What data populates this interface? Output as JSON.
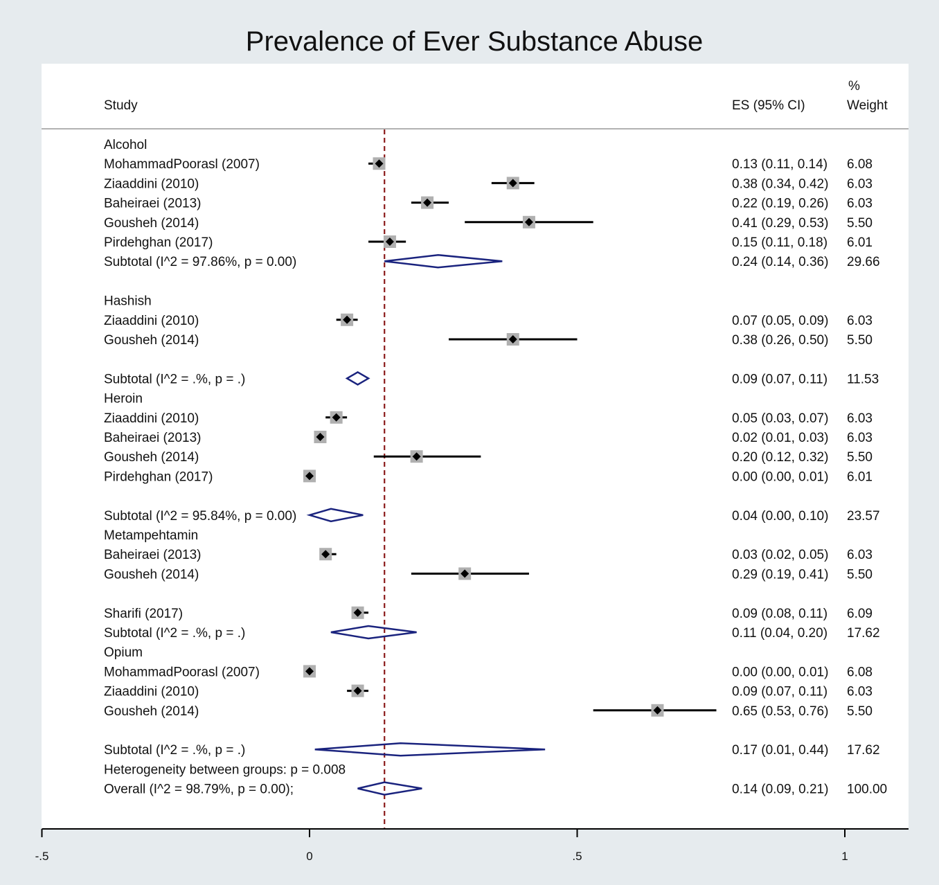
{
  "chart_data": {
    "type": "forest",
    "title": "Prevalence of Ever Substance Abuse",
    "headers": {
      "study": "Study",
      "es": "ES (95% CI)",
      "weight_pct": "%",
      "weight": "Weight"
    },
    "null_line": 0.14,
    "xlim": [
      -0.5,
      1.15
    ],
    "xticks": [
      {
        "value": -0.5,
        "label": "-.5"
      },
      {
        "value": 0,
        "label": "0"
      },
      {
        "value": 0.5,
        "label": ".5"
      },
      {
        "value": 1,
        "label": "1"
      }
    ],
    "rows": [
      {
        "kind": "group",
        "label": "Alcohol"
      },
      {
        "kind": "study",
        "label": "MohammadPoorasl (2007)",
        "es": 0.13,
        "lo": 0.11,
        "hi": 0.14,
        "ci_text": "0.13 (0.11, 0.14)",
        "weight": "6.08"
      },
      {
        "kind": "study",
        "label": "Ziaaddini (2010)",
        "es": 0.38,
        "lo": 0.34,
        "hi": 0.42,
        "ci_text": "0.38 (0.34, 0.42)",
        "weight": "6.03"
      },
      {
        "kind": "study",
        "label": "Baheiraei  (2013)",
        "es": 0.22,
        "lo": 0.19,
        "hi": 0.26,
        "ci_text": "0.22 (0.19, 0.26)",
        "weight": "6.03"
      },
      {
        "kind": "study",
        "label": "Gousheh (2014)",
        "es": 0.41,
        "lo": 0.29,
        "hi": 0.53,
        "ci_text": "0.41 (0.29, 0.53)",
        "weight": "5.50"
      },
      {
        "kind": "study",
        "label": "Pirdehghan (2017)",
        "es": 0.15,
        "lo": 0.11,
        "hi": 0.18,
        "ci_text": "0.15 (0.11, 0.18)",
        "weight": "6.01"
      },
      {
        "kind": "subtotal",
        "label": "Subtotal  (I^2 = 97.86%, p = 0.00)",
        "es": 0.24,
        "lo": 0.14,
        "hi": 0.36,
        "ci_text": "0.24 (0.14, 0.36)",
        "weight": "29.66"
      },
      {
        "kind": "group",
        "label": "Hashish"
      },
      {
        "kind": "study",
        "label": "Ziaaddini (2010)",
        "es": 0.07,
        "lo": 0.05,
        "hi": 0.09,
        "ci_text": "0.07 (0.05, 0.09)",
        "weight": "6.03"
      },
      {
        "kind": "study",
        "label": "Gousheh (2014)",
        "es": 0.38,
        "lo": 0.26,
        "hi": 0.5,
        "ci_text": "0.38 (0.26, 0.50)",
        "weight": "5.50"
      },
      {
        "kind": "subtotal",
        "label": "Subtotal  (I^2 = .%, p = .)",
        "es": 0.09,
        "lo": 0.07,
        "hi": 0.11,
        "ci_text": "0.09 (0.07, 0.11)",
        "weight": "11.53"
      },
      {
        "kind": "group",
        "label": "Heroin"
      },
      {
        "kind": "study",
        "label": "Ziaaddini (2010)",
        "es": 0.05,
        "lo": 0.03,
        "hi": 0.07,
        "ci_text": "0.05 (0.03, 0.07)",
        "weight": "6.03"
      },
      {
        "kind": "study",
        "label": "Baheiraei  (2013)",
        "es": 0.02,
        "lo": 0.01,
        "hi": 0.03,
        "ci_text": "0.02 (0.01, 0.03)",
        "weight": "6.03"
      },
      {
        "kind": "study",
        "label": "Gousheh (2014)",
        "es": 0.2,
        "lo": 0.12,
        "hi": 0.32,
        "ci_text": "0.20 (0.12, 0.32)",
        "weight": "5.50"
      },
      {
        "kind": "study",
        "label": "Pirdehghan (2017)",
        "es": 0.0,
        "lo": 0.0,
        "hi": 0.01,
        "ci_text": "0.00 (0.00, 0.01)",
        "weight": "6.01"
      },
      {
        "kind": "subtotal",
        "label": "Subtotal  (I^2 = 95.84%, p = 0.00)",
        "es": 0.04,
        "lo": 0.0,
        "hi": 0.1,
        "ci_text": "0.04 (0.00, 0.10)",
        "weight": "23.57"
      },
      {
        "kind": "group",
        "label": "Metampehtamin"
      },
      {
        "kind": "study",
        "label": "Baheiraei  (2013)",
        "es": 0.03,
        "lo": 0.02,
        "hi": 0.05,
        "ci_text": "0.03 (0.02, 0.05)",
        "weight": "6.03"
      },
      {
        "kind": "study",
        "label": "Gousheh (2014)",
        "es": 0.29,
        "lo": 0.19,
        "hi": 0.41,
        "ci_text": "0.29 (0.19, 0.41)",
        "weight": "5.50"
      },
      {
        "kind": "study",
        "label": "Sharifi (2017)",
        "es": 0.09,
        "lo": 0.08,
        "hi": 0.11,
        "ci_text": "0.09 (0.08, 0.11)",
        "weight": "6.09"
      },
      {
        "kind": "subtotal",
        "label": "Subtotal  (I^2 = .%, p = .)",
        "es": 0.11,
        "lo": 0.04,
        "hi": 0.2,
        "ci_text": "0.11 (0.04, 0.20)",
        "weight": "17.62"
      },
      {
        "kind": "group",
        "label": "Opium"
      },
      {
        "kind": "study",
        "label": "MohammadPoorasl (2007)",
        "es": 0.0,
        "lo": 0.0,
        "hi": 0.01,
        "ci_text": "0.00 (0.00, 0.01)",
        "weight": "6.08"
      },
      {
        "kind": "study",
        "label": "Ziaaddini (2010)",
        "es": 0.09,
        "lo": 0.07,
        "hi": 0.11,
        "ci_text": "0.09 (0.07, 0.11)",
        "weight": "6.03"
      },
      {
        "kind": "study",
        "label": "Gousheh (2014)",
        "es": 0.65,
        "lo": 0.53,
        "hi": 0.76,
        "ci_text": "0.65 (0.53, 0.76)",
        "weight": "5.50"
      },
      {
        "kind": "subtotal",
        "label": "Subtotal  (I^2 = .%, p = .)",
        "es": 0.17,
        "lo": 0.01,
        "hi": 0.44,
        "ci_text": "0.17 (0.01, 0.44)",
        "weight": "17.62"
      },
      {
        "kind": "note",
        "label": "Heterogeneity between groups: p = 0.008"
      },
      {
        "kind": "overall",
        "label": "Overall  (I^2 = 98.79%, p = 0.00);",
        "es": 0.14,
        "lo": 0.09,
        "hi": 0.21,
        "ci_text": "0.14 (0.09, 0.21)",
        "weight": "100.00"
      }
    ],
    "colors": {
      "background": "#e6ebee",
      "plot": "#ffffff",
      "point": "#000000",
      "box": "#b0b0b0",
      "diamond": "#1a237e",
      "null_line": "#8b1a1a",
      "axis": "#000000"
    }
  }
}
